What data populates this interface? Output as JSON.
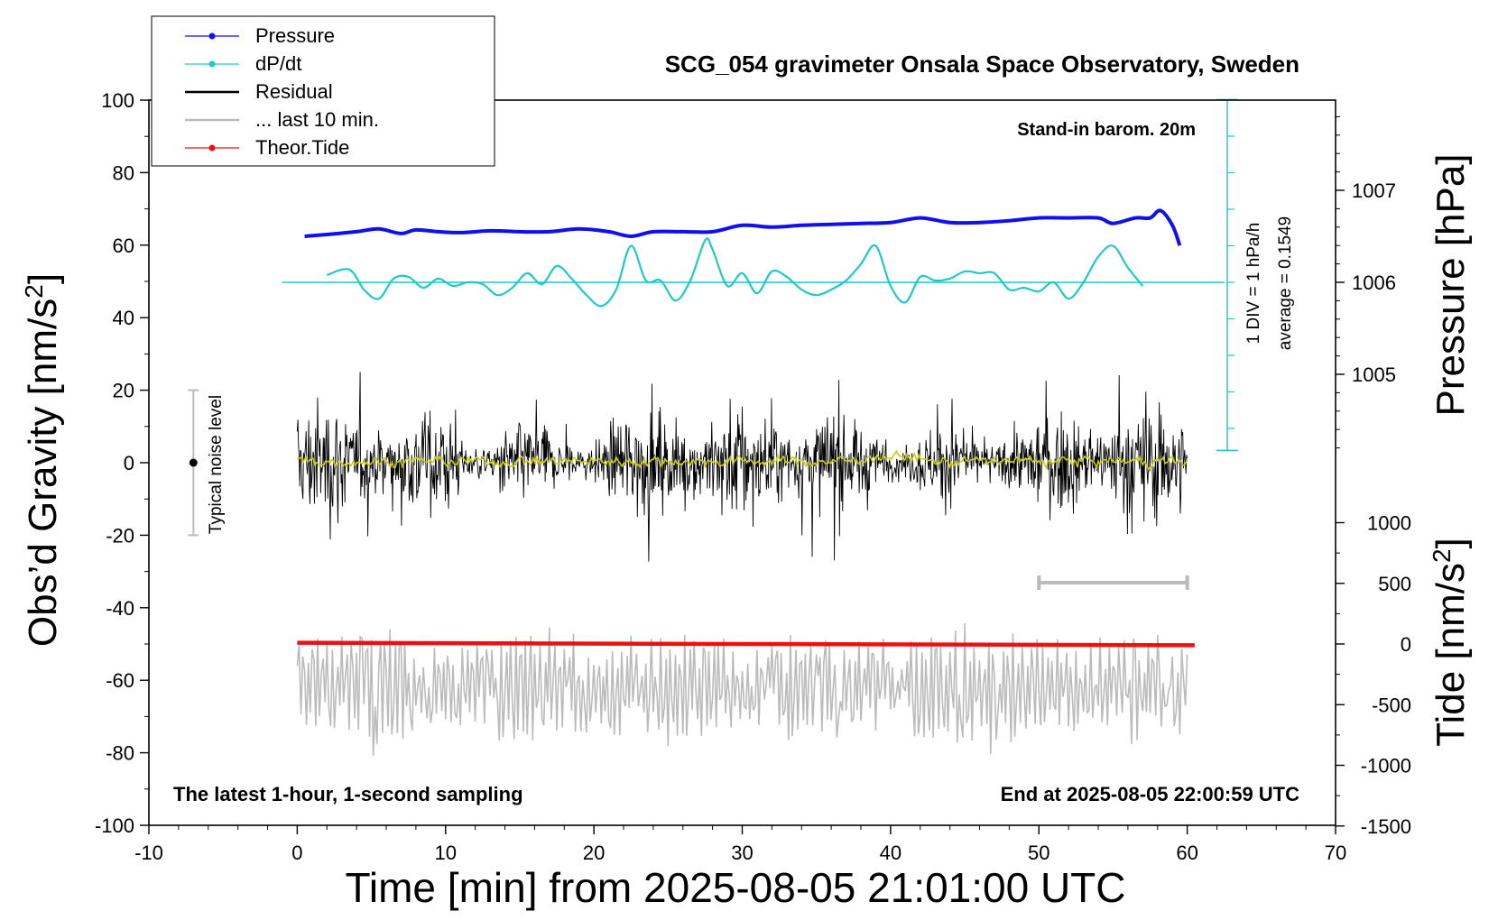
{
  "chart_data": {
    "type": "line",
    "title": "SCG_054 gravimeter Onsala Space Observatory, Sweden",
    "xlabel": "Time [min] from 2025-08-05 21:01:00 UTC",
    "ylabel_left": "Obs'd Gravity [nm/s²]",
    "ylabel_left_base": "Obs’d Gravity [nm/s",
    "ylabel_left_sup": "2",
    "ylabel_left_end": "]",
    "ylabel_right_pressure": "Pressure [hPa]",
    "ylabel_right_tide": "Tide [nm/s²]",
    "ylabel_right_tide_base": "Tide [nm/s",
    "ylabel_right_tide_sup": "2",
    "ylabel_right_tide_end": "]",
    "xlim": [
      -10,
      70
    ],
    "ylim": [
      -100,
      100
    ],
    "x_ticks": [
      -10,
      0,
      10,
      20,
      30,
      40,
      50,
      60,
      70
    ],
    "y_ticks": [
      -100,
      -80,
      -60,
      -40,
      -20,
      0,
      20,
      40,
      60,
      80,
      100
    ],
    "pressure_ticks": [
      1005,
      1006,
      1007
    ],
    "tide_ticks": [
      -1500,
      -1000,
      -500,
      0,
      500,
      1000
    ],
    "legend_position": "top-left",
    "legend": [
      {
        "label": "Pressure",
        "color": "#1010ee",
        "marker": "dot"
      },
      {
        "label": "dP/dt",
        "color": "#20c8c8",
        "marker": "dot"
      },
      {
        "label": "Residual",
        "color": "#000000",
        "marker": "line"
      },
      {
        "label": "... last 10 min.",
        "color": "#bbbbbb",
        "marker": "line"
      },
      {
        "label": "Theor.Tide",
        "color": "#ee1010",
        "marker": "dot"
      }
    ],
    "annotations": {
      "barometer": "Stand-in barom. 20m",
      "scale_div": "1 DIV = 1 hPa/h",
      "average": "average = 0.1549",
      "noise": "Typical noise level",
      "sampling": "The latest 1-hour, 1-second sampling",
      "end": "End at 2025-08-05 22:00:59 UTC"
    },
    "series": [
      {
        "name": "Pressure",
        "axis": "pressure",
        "x": [
          0.5,
          2,
          4,
          5.5,
          7,
          8,
          9.5,
          11,
          13,
          15,
          17,
          19,
          21,
          22.5,
          24,
          26,
          28,
          30,
          32,
          34,
          36,
          38,
          40,
          42,
          44,
          46,
          48,
          50,
          52,
          54,
          55,
          56.5,
          57.5,
          58.2,
          59,
          59.5
        ],
        "y": [
          1006.5,
          1006.52,
          1006.55,
          1006.58,
          1006.53,
          1006.57,
          1006.55,
          1006.54,
          1006.56,
          1006.55,
          1006.55,
          1006.58,
          1006.55,
          1006.5,
          1006.55,
          1006.55,
          1006.55,
          1006.62,
          1006.6,
          1006.62,
          1006.63,
          1006.64,
          1006.65,
          1006.7,
          1006.65,
          1006.65,
          1006.67,
          1006.7,
          1006.7,
          1006.7,
          1006.64,
          1006.7,
          1006.7,
          1006.78,
          1006.62,
          1006.4
        ]
      },
      {
        "name": "dP/dt",
        "axis": "dpdt",
        "x": [
          2,
          3.5,
          4.5,
          5.5,
          6.5,
          7.5,
          8.5,
          9.5,
          10.5,
          11.5,
          12.5,
          13.5,
          14.5,
          15.5,
          16.5,
          17.5,
          18.5,
          19.5,
          20.5,
          21.5,
          22.5,
          23.5,
          24.5,
          25.5,
          26.5,
          27.5,
          28,
          29,
          30,
          31,
          32,
          33,
          34,
          35,
          36,
          37,
          38,
          39,
          40,
          41,
          42,
          43,
          44,
          45,
          46,
          47,
          48,
          49,
          50,
          51,
          52,
          53,
          54,
          55,
          56,
          57
        ],
        "y": [
          0.2,
          0.35,
          -0.2,
          -0.45,
          0.1,
          0.15,
          -0.15,
          0.1,
          -0.1,
          0.0,
          -0.05,
          -0.35,
          -0.15,
          0.25,
          -0.05,
          0.45,
          0.1,
          -0.35,
          -0.65,
          -0.2,
          1.0,
          0.05,
          0.05,
          -0.5,
          0.05,
          1.15,
          0.9,
          -0.1,
          0.25,
          -0.3,
          0.3,
          0.15,
          -0.2,
          -0.35,
          -0.2,
          0.05,
          0.5,
          1.0,
          -0.1,
          -0.55,
          0.15,
          0.05,
          0.1,
          0.3,
          0.25,
          0.25,
          -0.2,
          -0.15,
          -0.25,
          0.0,
          -0.45,
          0.0,
          0.7,
          1.0,
          0.4,
          -0.1
        ]
      },
      {
        "name": "Residual",
        "axis": "gravity",
        "x_range": [
          0,
          60
        ],
        "y_range": [
          -32,
          36
        ],
        "sampling": "1-second"
      },
      {
        "name": "... last 10 min.",
        "axis": "gravity",
        "x_range": [
          0,
          60
        ],
        "y_range": [
          -90,
          -40
        ]
      },
      {
        "name": "Theor.Tide",
        "axis": "tide",
        "x": [
          0,
          60.5
        ],
        "y": [
          10,
          -10
        ]
      }
    ]
  }
}
